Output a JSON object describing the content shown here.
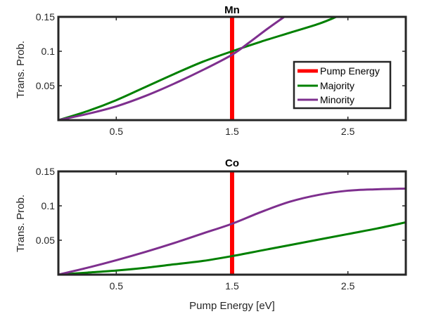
{
  "chart_data": [
    {
      "type": "line",
      "title": "Mn",
      "xlabel": "",
      "ylabel": "Trans. Prob.",
      "xlim": [
        0,
        3
      ],
      "ylim": [
        0,
        0.15
      ],
      "xticks": [
        "0.5",
        "1.5",
        "2.5"
      ],
      "yticks": [
        "0.05",
        "0.1",
        "0.15"
      ],
      "grid": false,
      "legend_position": "bottom-right",
      "vline": {
        "name": "Pump Energy",
        "x": 1.5,
        "color": "#ff0000"
      },
      "series": [
        {
          "name": "Majority",
          "color": "#008000",
          "x": [
            0,
            0.25,
            0.5,
            0.75,
            1.0,
            1.25,
            1.5,
            1.75,
            2.0,
            2.25,
            2.4
          ],
          "y": [
            0,
            0.013,
            0.029,
            0.048,
            0.067,
            0.085,
            0.1,
            0.114,
            0.127,
            0.14,
            0.15
          ]
        },
        {
          "name": "Minority",
          "color": "#7e2f8e",
          "x": [
            0,
            0.25,
            0.5,
            0.75,
            1.0,
            1.25,
            1.5,
            1.65,
            1.8,
            1.95
          ],
          "y": [
            0,
            0.009,
            0.02,
            0.035,
            0.053,
            0.073,
            0.095,
            0.113,
            0.132,
            0.15
          ]
        }
      ]
    },
    {
      "type": "line",
      "title": "Co",
      "xlabel": "Pump Energy [eV]",
      "ylabel": "Trans. Prob.",
      "xlim": [
        0,
        3
      ],
      "ylim": [
        0,
        0.15
      ],
      "xticks": [
        "0.5",
        "1.5",
        "2.5"
      ],
      "yticks": [
        "0.05",
        "0.1",
        "0.15"
      ],
      "grid": false,
      "vline": {
        "name": "Pump Energy",
        "x": 1.5,
        "color": "#ff0000"
      },
      "series": [
        {
          "name": "Majority",
          "color": "#008000",
          "x": [
            0,
            0.25,
            0.5,
            0.75,
            1.0,
            1.25,
            1.5,
            1.75,
            2.0,
            2.25,
            2.5,
            2.75,
            3.0
          ],
          "y": [
            0,
            0.003,
            0.006,
            0.01,
            0.015,
            0.02,
            0.027,
            0.035,
            0.043,
            0.051,
            0.059,
            0.067,
            0.076
          ]
        },
        {
          "name": "Minority",
          "color": "#7e2f8e",
          "x": [
            0,
            0.25,
            0.5,
            0.75,
            1.0,
            1.25,
            1.5,
            1.75,
            2.0,
            2.25,
            2.5,
            2.75,
            3.0
          ],
          "y": [
            0,
            0.01,
            0.021,
            0.033,
            0.046,
            0.06,
            0.074,
            0.091,
            0.106,
            0.116,
            0.122,
            0.124,
            0.125
          ]
        }
      ]
    }
  ]
}
